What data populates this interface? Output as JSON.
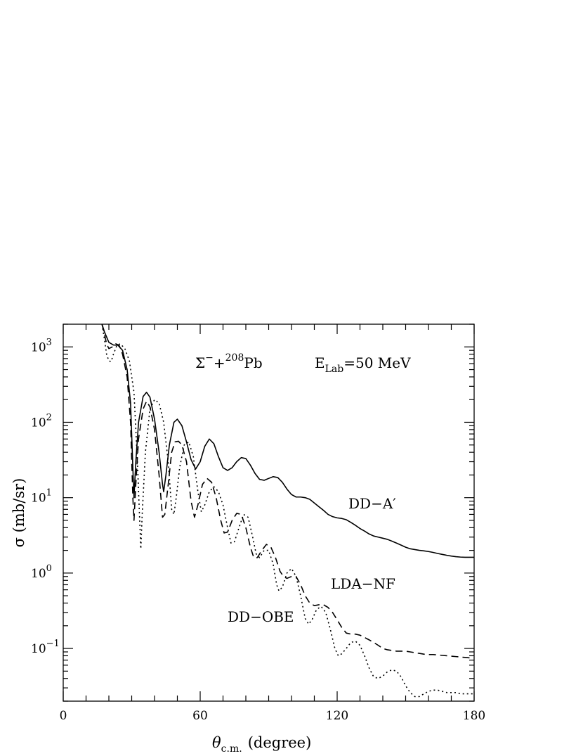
{
  "chart_data": {
    "type": "line",
    "title": "",
    "xlabel": "θ",
    "xlabel_sub": "c.m.",
    "xlabel_unit": "(degree)",
    "ylabel": "σ  (mb/sr)",
    "xlim": [
      0,
      180
    ],
    "ylim": [
      0.02,
      2000
    ],
    "yscale": "log",
    "grid": false,
    "x_ticks": [
      0,
      60,
      120,
      180
    ],
    "x_tick_labels": [
      "0",
      "60",
      "120",
      "180"
    ],
    "y_ticks": [
      0.1,
      1,
      10,
      100,
      1000
    ],
    "y_tick_labels": [
      {
        "base": "10",
        "exp": "−1"
      },
      {
        "base": "10",
        "exp": "0"
      },
      {
        "base": "10",
        "exp": "1"
      },
      {
        "base": "10",
        "exp": "2"
      },
      {
        "base": "10",
        "exp": "3"
      }
    ],
    "annotation": {
      "sigma": "Σ",
      "sigma_sup": "−",
      "plus": "+",
      "mass_sup": "208",
      "element": "Pb",
      "e_main": "E",
      "e_sub": "Lab",
      "energy": "=50  MeV"
    },
    "series": [
      {
        "name": "DD−A′",
        "label_name": "DD−A",
        "label_prime": "′",
        "style": "solid",
        "points": [
          [
            17,
            2000
          ],
          [
            18,
            1600
          ],
          [
            20,
            1150
          ],
          [
            22,
            1060
          ],
          [
            24,
            1050
          ],
          [
            26,
            900
          ],
          [
            28,
            500
          ],
          [
            29.5,
            180
          ],
          [
            30.5,
            25
          ],
          [
            31,
            10
          ],
          [
            31.8,
            30
          ],
          [
            33,
            100
          ],
          [
            35,
            220
          ],
          [
            36.5,
            250
          ],
          [
            38,
            215
          ],
          [
            40,
            110
          ],
          [
            42,
            40
          ],
          [
            43.5,
            15
          ],
          [
            44,
            12
          ],
          [
            45,
            20
          ],
          [
            46.5,
            50
          ],
          [
            48.5,
            100
          ],
          [
            50,
            110
          ],
          [
            52,
            90
          ],
          [
            54,
            55
          ],
          [
            56,
            32
          ],
          [
            58,
            24
          ],
          [
            60,
            30
          ],
          [
            62,
            48
          ],
          [
            64,
            60
          ],
          [
            66,
            52
          ],
          [
            68,
            35
          ],
          [
            70,
            25
          ],
          [
            72,
            23
          ],
          [
            74,
            25
          ],
          [
            76,
            30
          ],
          [
            78,
            34
          ],
          [
            80,
            33
          ],
          [
            82,
            27
          ],
          [
            84,
            21
          ],
          [
            86,
            17.5
          ],
          [
            88,
            17
          ],
          [
            90,
            18
          ],
          [
            92,
            19
          ],
          [
            94,
            18.5
          ],
          [
            96,
            16
          ],
          [
            98,
            13
          ],
          [
            100,
            11
          ],
          [
            102,
            10.2
          ],
          [
            104,
            10.2
          ],
          [
            106,
            10
          ],
          [
            108,
            9.5
          ],
          [
            110,
            8.5
          ],
          [
            112,
            7.6
          ],
          [
            114,
            6.8
          ],
          [
            116,
            6
          ],
          [
            118,
            5.6
          ],
          [
            120,
            5.4
          ],
          [
            122,
            5.3
          ],
          [
            124,
            5.1
          ],
          [
            126,
            4.7
          ],
          [
            128,
            4.3
          ],
          [
            130,
            3.9
          ],
          [
            132,
            3.6
          ],
          [
            134,
            3.3
          ],
          [
            136,
            3.1
          ],
          [
            138,
            3.0
          ],
          [
            140,
            2.9
          ],
          [
            142,
            2.8
          ],
          [
            144,
            2.65
          ],
          [
            146,
            2.5
          ],
          [
            148,
            2.35
          ],
          [
            150,
            2.2
          ],
          [
            152,
            2.1
          ],
          [
            154,
            2.05
          ],
          [
            156,
            2.0
          ],
          [
            158,
            1.97
          ],
          [
            160,
            1.93
          ],
          [
            162,
            1.88
          ],
          [
            164,
            1.82
          ],
          [
            166,
            1.77
          ],
          [
            168,
            1.72
          ],
          [
            170,
            1.68
          ],
          [
            172,
            1.65
          ],
          [
            174,
            1.63
          ],
          [
            176,
            1.62
          ],
          [
            178,
            1.62
          ],
          [
            180,
            1.62
          ]
        ]
      },
      {
        "name": "LDA−NF",
        "style": "dashed",
        "points": [
          [
            17,
            2000
          ],
          [
            18,
            1500
          ],
          [
            19,
            1100
          ],
          [
            20,
            950
          ],
          [
            21.5,
            1000
          ],
          [
            23,
            1100
          ],
          [
            24.5,
            1050
          ],
          [
            26,
            800
          ],
          [
            28,
            400
          ],
          [
            29.5,
            100
          ],
          [
            30.5,
            10
          ],
          [
            31,
            5
          ],
          [
            31.8,
            15
          ],
          [
            33,
            60
          ],
          [
            35,
            150
          ],
          [
            36.5,
            190
          ],
          [
            38,
            160
          ],
          [
            40,
            80
          ],
          [
            42,
            20
          ],
          [
            43.5,
            5.5
          ],
          [
            44.5,
            6
          ],
          [
            46,
            15
          ],
          [
            47.5,
            40
          ],
          [
            49,
            55
          ],
          [
            50.5,
            56
          ],
          [
            52,
            50
          ],
          [
            54,
            30
          ],
          [
            56,
            9
          ],
          [
            57.5,
            5.5
          ],
          [
            59,
            8
          ],
          [
            61,
            15
          ],
          [
            63,
            18
          ],
          [
            65,
            16
          ],
          [
            67,
            10
          ],
          [
            69,
            5
          ],
          [
            70.5,
            3.4
          ],
          [
            72,
            3.5
          ],
          [
            74,
            5
          ],
          [
            76,
            6.2
          ],
          [
            78,
            6
          ],
          [
            80,
            4
          ],
          [
            82,
            2.2
          ],
          [
            83.5,
            1.6
          ],
          [
            85,
            1.6
          ],
          [
            87,
            2.0
          ],
          [
            89,
            2.4
          ],
          [
            91,
            2.2
          ],
          [
            93,
            1.6
          ],
          [
            95,
            1.05
          ],
          [
            96.5,
            0.9
          ],
          [
            98,
            0.85
          ],
          [
            100,
            0.9
          ],
          [
            102,
            0.9
          ],
          [
            104,
            0.7
          ],
          [
            106,
            0.5
          ],
          [
            108,
            0.4
          ],
          [
            110,
            0.37
          ],
          [
            112,
            0.38
          ],
          [
            114,
            0.38
          ],
          [
            116,
            0.35
          ],
          [
            118,
            0.3
          ],
          [
            120,
            0.24
          ],
          [
            122,
            0.19
          ],
          [
            124,
            0.16
          ],
          [
            126,
            0.155
          ],
          [
            128,
            0.155
          ],
          [
            130,
            0.15
          ],
          [
            132,
            0.14
          ],
          [
            134,
            0.13
          ],
          [
            136,
            0.12
          ],
          [
            138,
            0.11
          ],
          [
            140,
            0.1
          ],
          [
            142,
            0.096
          ],
          [
            144,
            0.094
          ],
          [
            146,
            0.092
          ],
          [
            148,
            0.092
          ],
          [
            150,
            0.092
          ],
          [
            152,
            0.09
          ],
          [
            154,
            0.088
          ],
          [
            156,
            0.086
          ],
          [
            158,
            0.084
          ],
          [
            160,
            0.083
          ],
          [
            162,
            0.083
          ],
          [
            164,
            0.082
          ],
          [
            166,
            0.081
          ],
          [
            168,
            0.08
          ],
          [
            170,
            0.079
          ],
          [
            172,
            0.078
          ],
          [
            174,
            0.077
          ],
          [
            176,
            0.076
          ],
          [
            178,
            0.075
          ],
          [
            180,
            0.075
          ]
        ]
      },
      {
        "name": "DD−OBE",
        "style": "dotted",
        "points": [
          [
            17,
            2000
          ],
          [
            18,
            1300
          ],
          [
            19,
            800
          ],
          [
            20,
            650
          ],
          [
            21,
            640
          ],
          [
            22,
            800
          ],
          [
            23.5,
            1050
          ],
          [
            25,
            1100
          ],
          [
            27,
            950
          ],
          [
            29,
            650
          ],
          [
            31,
            250
          ],
          [
            32.5,
            30
          ],
          [
            33.5,
            5
          ],
          [
            34,
            2.1
          ],
          [
            34.6,
            6
          ],
          [
            36,
            40
          ],
          [
            38,
            150
          ],
          [
            40,
            200
          ],
          [
            42,
            180
          ],
          [
            44,
            100
          ],
          [
            46,
            30
          ],
          [
            47.5,
            7
          ],
          [
            48.5,
            6
          ],
          [
            49.5,
            10
          ],
          [
            51,
            25
          ],
          [
            53,
            50
          ],
          [
            55,
            55
          ],
          [
            57,
            35
          ],
          [
            59,
            12
          ],
          [
            60.5,
            6.5
          ],
          [
            62,
            8
          ],
          [
            64,
            12
          ],
          [
            66,
            14
          ],
          [
            68,
            12
          ],
          [
            70,
            8
          ],
          [
            72,
            4
          ],
          [
            73.5,
            2.5
          ],
          [
            75,
            2.6
          ],
          [
            77,
            4
          ],
          [
            79,
            6
          ],
          [
            81,
            5.5
          ],
          [
            83,
            3
          ],
          [
            84.5,
            1.8
          ],
          [
            86,
            1.6
          ],
          [
            88,
            2.0
          ],
          [
            90,
            2.0
          ],
          [
            92,
            1.3
          ],
          [
            93.5,
            0.7
          ],
          [
            94.5,
            0.58
          ],
          [
            96,
            0.65
          ],
          [
            98,
            1.0
          ],
          [
            100,
            1.15
          ],
          [
            102,
            0.9
          ],
          [
            104,
            0.5
          ],
          [
            106,
            0.25
          ],
          [
            107.5,
            0.21
          ],
          [
            109,
            0.24
          ],
          [
            111,
            0.33
          ],
          [
            113,
            0.36
          ],
          [
            115,
            0.3
          ],
          [
            117,
            0.18
          ],
          [
            119,
            0.1
          ],
          [
            120.5,
            0.08
          ],
          [
            122,
            0.085
          ],
          [
            124,
            0.1
          ],
          [
            126,
            0.12
          ],
          [
            128,
            0.125
          ],
          [
            130,
            0.11
          ],
          [
            132,
            0.08
          ],
          [
            134,
            0.055
          ],
          [
            136,
            0.042
          ],
          [
            138,
            0.04
          ],
          [
            140,
            0.043
          ],
          [
            142,
            0.049
          ],
          [
            144,
            0.052
          ],
          [
            146,
            0.05
          ],
          [
            148,
            0.042
          ],
          [
            150,
            0.032
          ],
          [
            152,
            0.026
          ],
          [
            154,
            0.023
          ],
          [
            156,
            0.023
          ],
          [
            158,
            0.025
          ],
          [
            160,
            0.027
          ],
          [
            162,
            0.028
          ],
          [
            164,
            0.028
          ],
          [
            166,
            0.027
          ],
          [
            168,
            0.026
          ],
          [
            170,
            0.026
          ],
          [
            172,
            0.026
          ],
          [
            174,
            0.025
          ],
          [
            176,
            0.025
          ],
          [
            178,
            0.025
          ],
          [
            180,
            0.025
          ]
        ]
      }
    ]
  }
}
